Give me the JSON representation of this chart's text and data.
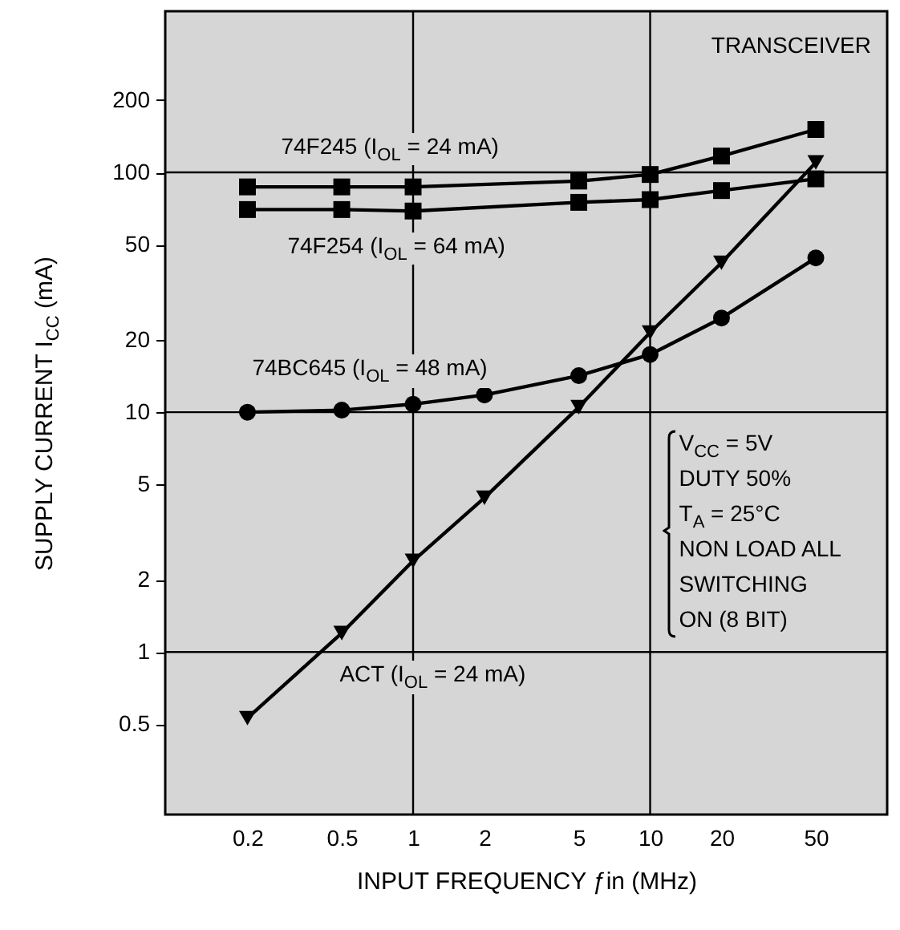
{
  "chart_data": {
    "type": "line",
    "xlabel": "INPUT FREQUENCY ƒin (MHz)",
    "ylabel": "SUPPLY CURRENT I$_{CC}$ (mA)",
    "log": "xy",
    "xlim": [
      0.09,
      100
    ],
    "ylim": [
      0.21,
      470
    ],
    "xticks": [
      0.2,
      0.5,
      1,
      2,
      5,
      10,
      20,
      50
    ],
    "yticks": [
      0.5,
      1,
      2,
      5,
      10,
      20,
      50,
      100,
      200
    ],
    "grid": false,
    "line_style": "solid",
    "ref_lines": [
      {
        "axis": "x",
        "value": 1
      },
      {
        "axis": "x",
        "value": 10
      },
      {
        "axis": "y",
        "value": 1
      },
      {
        "axis": "y",
        "value": 10
      },
      {
        "axis": "y",
        "value": 100
      }
    ],
    "annotations": [
      "TRANSCEIVER",
      "V$_{CC}$ = 5V",
      "DUTY 50%",
      "T$_{A}$ = 25°C",
      "NON LOAD ALL",
      "SWITCHING",
      "ON (8 BIT)"
    ],
    "series": [
      {
        "name": "74F245 (I$_{OL}$ = 24 mA)",
        "color": "#000000",
        "marker": "square",
        "x": [
          0.2,
          0.5,
          1,
          5,
          10,
          20,
          50
        ],
        "values": [
          87,
          87,
          87,
          92,
          98,
          117,
          151
        ]
      },
      {
        "name": "74F254 (I$_{OL}$ = 64 mA)",
        "color": "#000000",
        "marker": "square",
        "x": [
          0.2,
          0.5,
          1,
          5,
          10,
          20,
          50
        ],
        "values": [
          70,
          70,
          69,
          75,
          77,
          84,
          94
        ]
      },
      {
        "name": "74BC645 (I$_{OL}$ = 48 mA)",
        "color": "#000000",
        "marker": "circle",
        "x": [
          0.2,
          0.5,
          1,
          2,
          5,
          10,
          20,
          50
        ],
        "values": [
          10,
          10.2,
          10.8,
          11.8,
          14.2,
          17.4,
          24.7,
          44
        ]
      },
      {
        "name": "ACT (I$_{OL}$ = 24 mA)",
        "color": "#000000",
        "marker": "triangle",
        "x": [
          0.2,
          0.5,
          1,
          2,
          5,
          10,
          20,
          50
        ],
        "values": [
          0.53,
          1.2,
          2.4,
          4.4,
          10.5,
          21.5,
          42,
          110
        ]
      }
    ]
  }
}
